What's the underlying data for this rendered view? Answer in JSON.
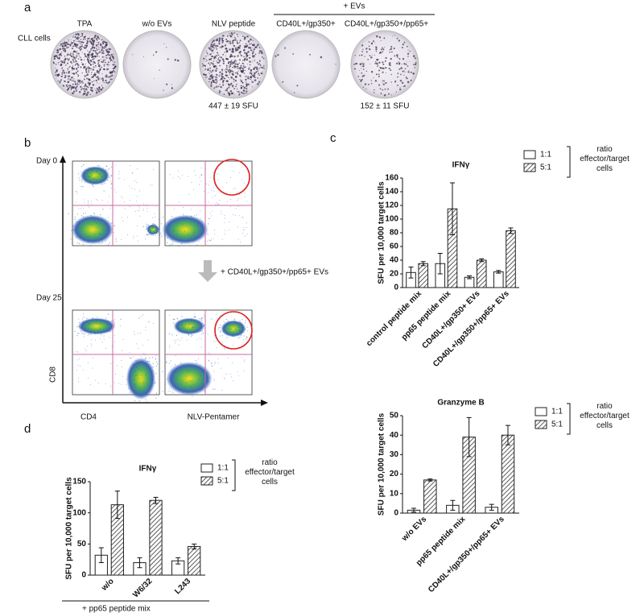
{
  "panel_a": {
    "label": "a",
    "row_label": "CLL cells",
    "group_label": "+ EVs",
    "wells": [
      "TPA",
      "w/o EVs",
      "NLV peptide",
      "CD40L+/gp350+",
      "CD40L+/gp350+/pp65+"
    ],
    "counts": [
      "447 ± 19 SFU",
      "152 ± 11 SFU"
    ]
  },
  "panel_b": {
    "label": "b",
    "rows": [
      "Day 0",
      "Day 25"
    ],
    "treatment": "+ CD40L+/gp350+/pp65+ EVs",
    "y_axis": "CD8",
    "x_axes": [
      "CD4",
      "NLV-Pentamer"
    ]
  },
  "panel_c": {
    "label": "c"
  },
  "panel_d": {
    "label": "d"
  },
  "chart_data": [
    {
      "type": "bar",
      "title": "IFNγ",
      "y_label": "SFU per 10,000 target cells",
      "categories": [
        "control peptide mix",
        "pp65 peptide mix",
        "CD40L+/gp350+ EVs",
        "CD40L+/gp350+/pp65+ EVs"
      ],
      "series": [
        {
          "name": "1:1",
          "color": "#ffffff",
          "hatch": false,
          "values": [
            22,
            35,
            15,
            23
          ],
          "errors": [
            8,
            15,
            2,
            2
          ]
        },
        {
          "name": "5:1",
          "color": "#333333",
          "hatch": true,
          "values": [
            35,
            115,
            40,
            83
          ],
          "errors": [
            3,
            38,
            2,
            4
          ]
        }
      ],
      "legend_title": "ratio effector/target cells",
      "ylim": [
        0,
        160
      ],
      "yticks": [
        0,
        20,
        40,
        60,
        80,
        100,
        120,
        140,
        160
      ]
    },
    {
      "type": "bar",
      "title": "Granzyme B",
      "y_label": "SFU per 10,000 target cells",
      "categories": [
        "w/o EVs",
        "pp65 peptide mix",
        "CD40L+/gp350+/pp65+ EVs"
      ],
      "series": [
        {
          "name": "1:1",
          "color": "#ffffff",
          "hatch": false,
          "values": [
            1.5,
            4,
            3
          ],
          "errors": [
            1,
            2.5,
            1.5
          ]
        },
        {
          "name": "5:1",
          "color": "#333333",
          "hatch": true,
          "values": [
            17,
            39,
            40
          ],
          "errors": [
            0.5,
            10,
            5
          ]
        }
      ],
      "legend_title": "ratio effector/target cells",
      "ylim": [
        0,
        50
      ],
      "yticks": [
        0,
        10,
        20,
        30,
        40,
        50
      ]
    },
    {
      "type": "bar",
      "title": "IFNγ",
      "y_label": "SFU per 10,000 target cells",
      "categories": [
        "w/o",
        "W6/32",
        "L243"
      ],
      "series": [
        {
          "name": "1:1",
          "color": "#ffffff",
          "hatch": false,
          "values": [
            32,
            20,
            23
          ],
          "errors": [
            12,
            8,
            5
          ]
        },
        {
          "name": "5:1",
          "color": "#333333",
          "hatch": true,
          "values": [
            113,
            120,
            46
          ],
          "errors": [
            22,
            5,
            4
          ]
        }
      ],
      "legend_title": "ratio effector/target cells",
      "x_group_label": "+ pp65 peptide mix",
      "ylim": [
        0,
        150
      ],
      "yticks": [
        0,
        50,
        100,
        150
      ]
    }
  ]
}
